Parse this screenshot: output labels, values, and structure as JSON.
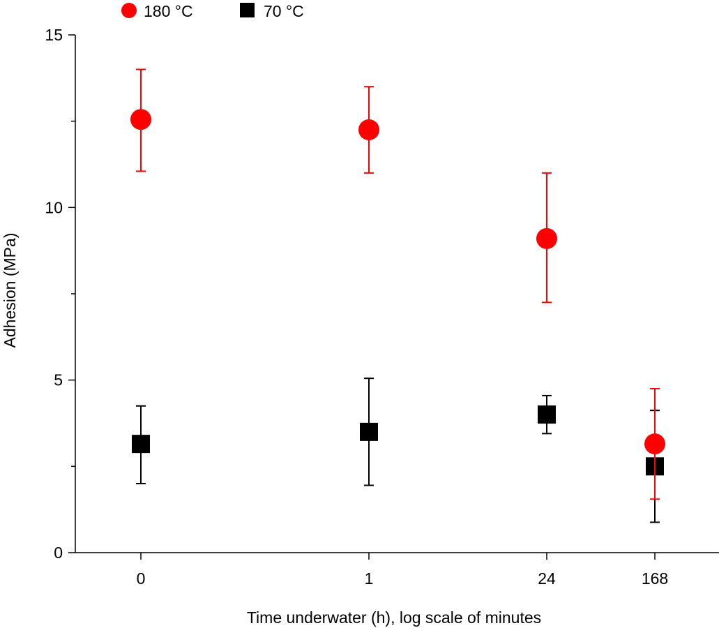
{
  "chart_data": {
    "type": "scatter",
    "title": "",
    "xlabel": "Time underwater (h), log scale of minutes",
    "ylabel": "Adhesion (MPa)",
    "ylim": [
      0,
      15
    ],
    "yticks": [
      "0",
      "5",
      "10",
      "15"
    ],
    "categories": [
      "0",
      "1",
      "24",
      "168"
    ],
    "legend_position": "top-left",
    "series": [
      {
        "name": "180 °C",
        "marker": "circle",
        "color": "#ff0000",
        "values": [
          12.55,
          12.25,
          9.1,
          3.15
        ],
        "error_low": [
          11.05,
          11.0,
          7.25,
          1.55
        ],
        "error_high": [
          14.0,
          13.5,
          11.0,
          4.75
        ]
      },
      {
        "name": "70 °C",
        "marker": "square",
        "color": "#000000",
        "values": [
          3.15,
          3.5,
          4.0,
          2.5
        ],
        "error_low": [
          2.0,
          1.95,
          3.45,
          0.88
        ],
        "error_high": [
          4.25,
          5.05,
          4.55,
          4.12
        ]
      }
    ]
  }
}
